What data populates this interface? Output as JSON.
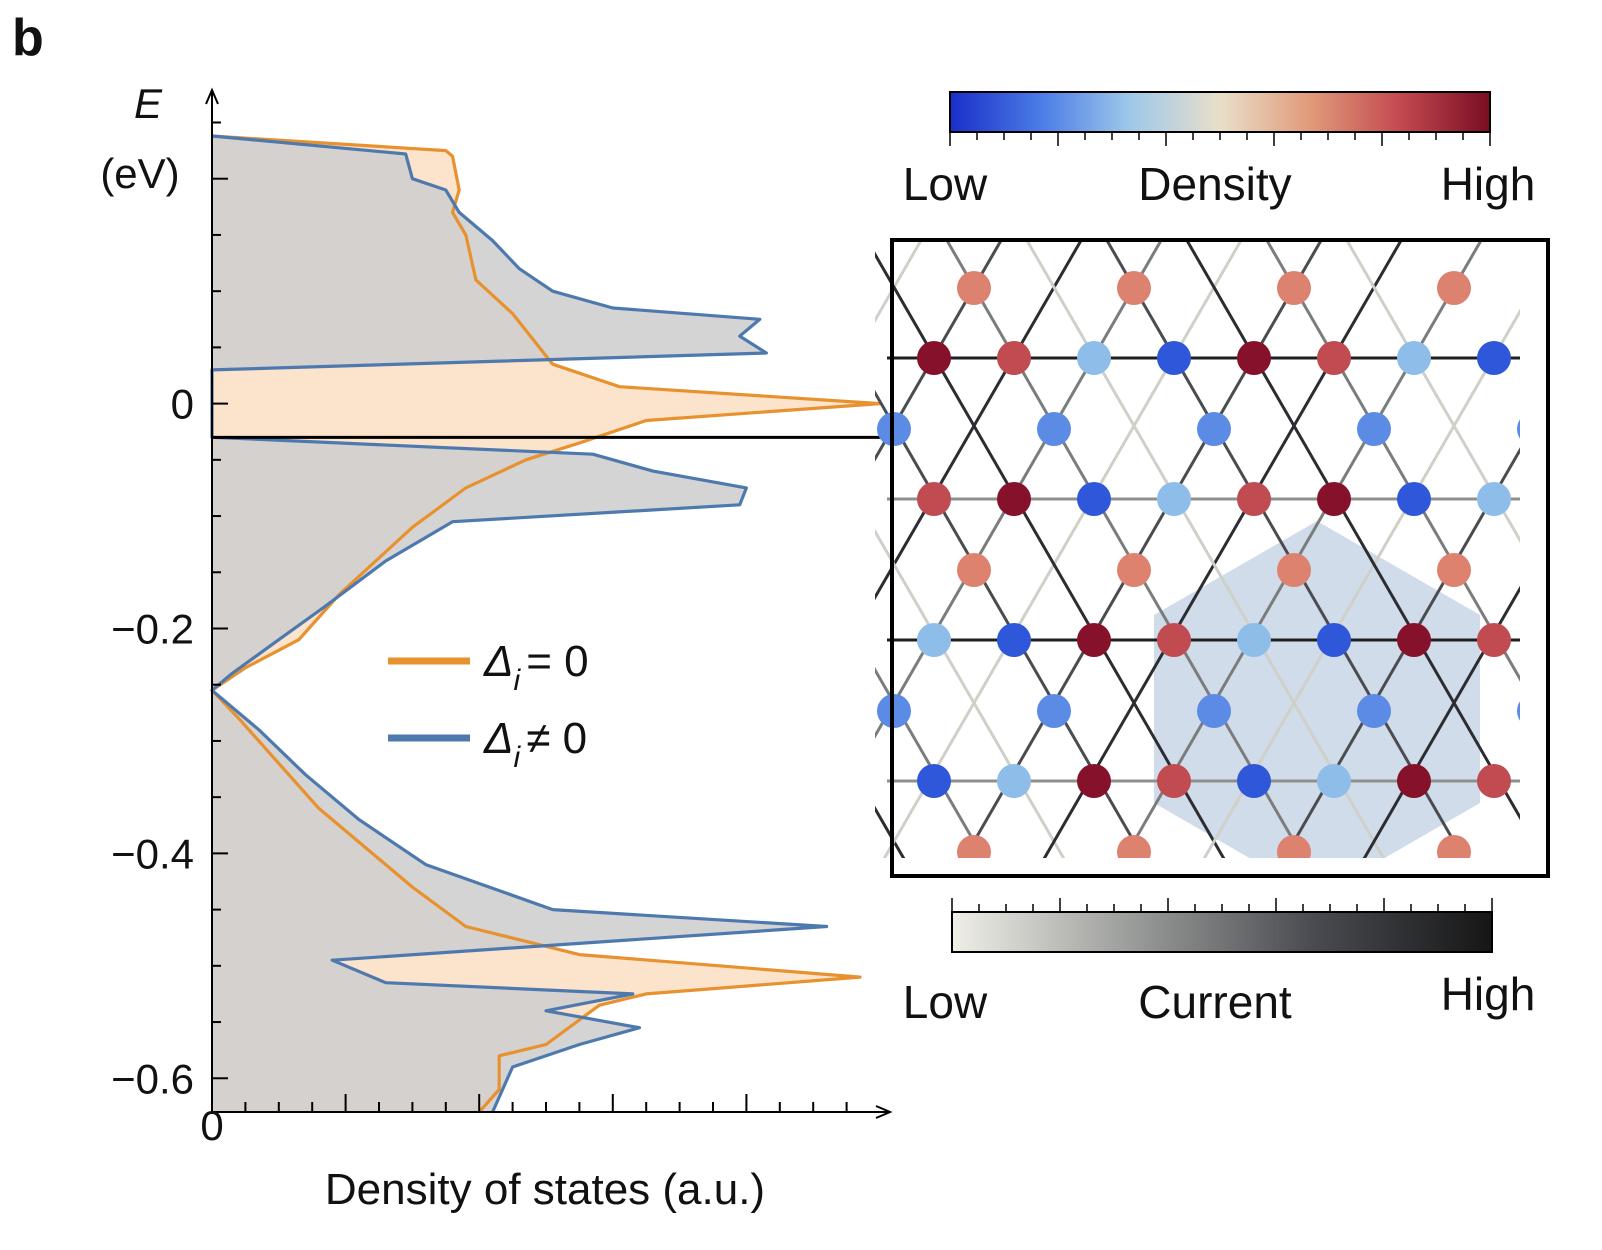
{
  "panel_label": "b",
  "chart_data": {
    "type": "line",
    "ylabel_symbol": "E",
    "ylabel_unit": "(eV)",
    "xlabel": "Density of states (a.u.)",
    "x_tick_labels": [
      "0"
    ],
    "y_tick_labels": [
      "0",
      "−0.2",
      "−0.4",
      "−0.6"
    ],
    "y_ticks": [
      0,
      -0.2,
      -0.4,
      -0.6
    ],
    "ylim": [
      -0.63,
      0.27
    ],
    "xlim": [
      0,
      1
    ],
    "horizontal_marker_energy": -0.03,
    "legend_position": "center",
    "series": [
      {
        "name": "Δi = 0",
        "legend_symbol": "Δ",
        "legend_sub": "i",
        "legend_rel": "= 0",
        "color": "#E8912F",
        "fill": "#FBE3CC",
        "points": [
          [
            0.0,
            0.238
          ],
          [
            0.35,
            0.225
          ],
          [
            0.36,
            0.22
          ],
          [
            0.37,
            0.19
          ],
          [
            0.36,
            0.17
          ],
          [
            0.38,
            0.15
          ],
          [
            0.395,
            0.11
          ],
          [
            0.45,
            0.08
          ],
          [
            0.49,
            0.05
          ],
          [
            0.51,
            0.035
          ],
          [
            0.61,
            0.015
          ],
          [
            1.0,
            0.0
          ],
          [
            0.65,
            -0.015
          ],
          [
            0.55,
            -0.035
          ],
          [
            0.47,
            -0.05
          ],
          [
            0.38,
            -0.075
          ],
          [
            0.3,
            -0.11
          ],
          [
            0.19,
            -0.17
          ],
          [
            0.13,
            -0.21
          ],
          [
            0.05,
            -0.235
          ],
          [
            0.0,
            -0.255
          ],
          [
            0.04,
            -0.28
          ],
          [
            0.1,
            -0.32
          ],
          [
            0.16,
            -0.36
          ],
          [
            0.22,
            -0.39
          ],
          [
            0.3,
            -0.43
          ],
          [
            0.38,
            -0.465
          ],
          [
            0.55,
            -0.49
          ],
          [
            0.97,
            -0.51
          ],
          [
            0.65,
            -0.525
          ],
          [
            0.58,
            -0.535
          ],
          [
            0.5,
            -0.57
          ],
          [
            0.43,
            -0.58
          ],
          [
            0.43,
            -0.61
          ],
          [
            0.4,
            -0.63
          ]
        ]
      },
      {
        "name": "Δi ≠ 0",
        "legend_symbol": "Δ",
        "legend_sub": "i",
        "legend_rel": "≠ 0",
        "color": "#4E79AE",
        "fill": "#DCE6F1",
        "points": [
          [
            0.0,
            0.238
          ],
          [
            0.29,
            0.222
          ],
          [
            0.3,
            0.2
          ],
          [
            0.35,
            0.19
          ],
          [
            0.37,
            0.17
          ],
          [
            0.42,
            0.145
          ],
          [
            0.46,
            0.12
          ],
          [
            0.51,
            0.1
          ],
          [
            0.6,
            0.085
          ],
          [
            0.82,
            0.075
          ],
          [
            0.79,
            0.06
          ],
          [
            0.83,
            0.045
          ],
          [
            0.0,
            0.03
          ],
          [
            0.0,
            -0.03
          ],
          [
            0.57,
            -0.045
          ],
          [
            0.66,
            -0.06
          ],
          [
            0.8,
            -0.075
          ],
          [
            0.79,
            -0.09
          ],
          [
            0.36,
            -0.105
          ],
          [
            0.26,
            -0.14
          ],
          [
            0.17,
            -0.18
          ],
          [
            0.1,
            -0.21
          ],
          [
            0.03,
            -0.24
          ],
          [
            0.0,
            -0.255
          ],
          [
            0.07,
            -0.29
          ],
          [
            0.14,
            -0.33
          ],
          [
            0.22,
            -0.37
          ],
          [
            0.32,
            -0.41
          ],
          [
            0.51,
            -0.45
          ],
          [
            0.92,
            -0.465
          ],
          [
            0.18,
            -0.495
          ],
          [
            0.26,
            -0.515
          ],
          [
            0.63,
            -0.525
          ],
          [
            0.5,
            -0.54
          ],
          [
            0.64,
            -0.555
          ],
          [
            0.55,
            -0.57
          ],
          [
            0.45,
            -0.59
          ],
          [
            0.42,
            -0.63
          ]
        ]
      }
    ]
  },
  "inset": {
    "density_colorbar": {
      "low_label": "Low",
      "title": "Density",
      "high_label": "High",
      "colors": [
        "#1a2fc9",
        "#4a7be6",
        "#9ec8ea",
        "#e9dfc9",
        "#e19a7a",
        "#c24a50",
        "#7a0d22"
      ]
    },
    "current_colorbar": {
      "low_label": "Low",
      "title": "Current",
      "high_label": "High",
      "colors": [
        "#efefe7",
        "#9a9c9a",
        "#4a4c52",
        "#161616"
      ]
    },
    "site_colors": {
      "dark_red": "#86112A",
      "red": "#C04B51",
      "salmon": "#DC826F",
      "light_blue": "#8FBDEA",
      "mid_blue": "#5B8BE5",
      "blue": "#2F57DA"
    },
    "hex_fill": "#C9D6E7"
  }
}
